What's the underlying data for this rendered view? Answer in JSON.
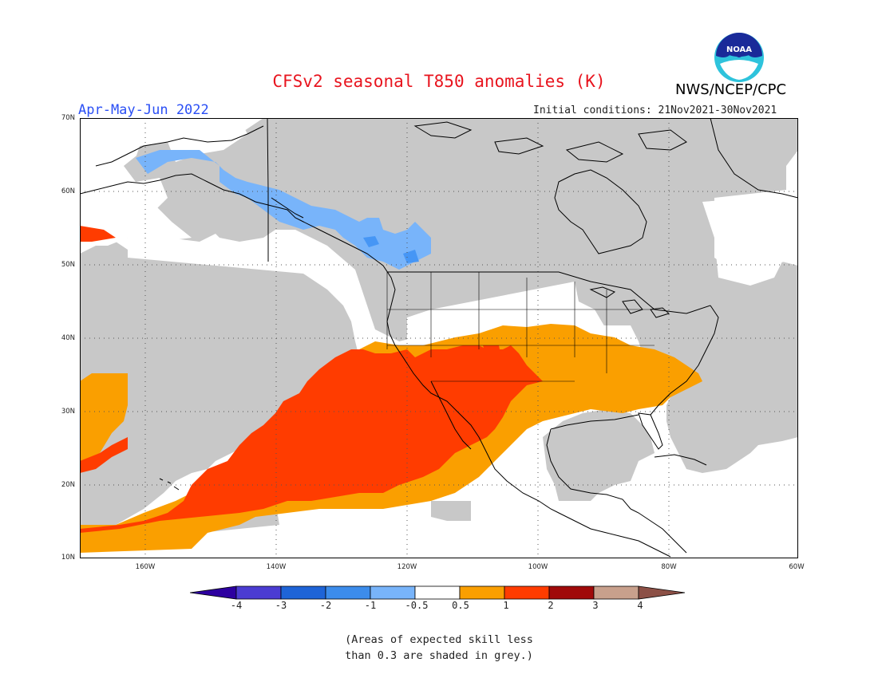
{
  "header": {
    "title": "CFSv2 seasonal T850 anomalies (K)",
    "organization": "NWS/NCEP/CPC",
    "season": "Apr-May-Jun 2022",
    "initial_conditions": "Initial conditions: 21Nov2021-30Nov2021",
    "logo_text": "NOAA"
  },
  "map": {
    "lat_labels": [
      "70N",
      "60N",
      "50N",
      "40N",
      "30N",
      "20N",
      "10N"
    ],
    "lon_labels": [
      "160W",
      "140W",
      "120W",
      "100W",
      "80W",
      "60W"
    ],
    "colors": {
      "grey_low_skill": "#c8c8c8",
      "neutral": "#ffffff",
      "cold_1": "#78b4fa",
      "cold_05": "#4696f5",
      "warm_05": "#fa9f00",
      "warm_1": "#ff3c00",
      "coast": "#000000"
    }
  },
  "colorbar": {
    "tick_labels": [
      "-4",
      "-3",
      "-2",
      "-1",
      "-0.5",
      "0.5",
      "1",
      "2",
      "3",
      "4"
    ],
    "colors": [
      "#2d00a0",
      "#4b3cd2",
      "#1e64d7",
      "#3c8ceb",
      "#78b4fa",
      "#ffffff",
      "#fa9f00",
      "#ff3c00",
      "#a00a0a",
      "#c8a08c",
      "#8c5046"
    ]
  },
  "footnote": {
    "line1": "(Areas of expected skill less",
    "line2": "than 0.3 are shaded in grey.)"
  }
}
